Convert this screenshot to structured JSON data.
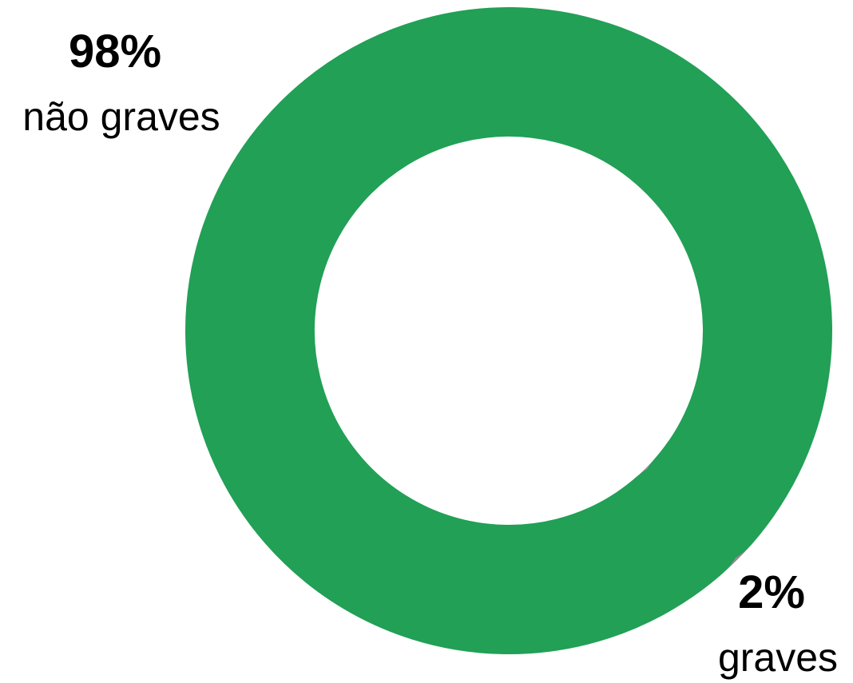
{
  "chart_data": {
    "type": "pie",
    "variant": "donut",
    "title": "",
    "slices": [
      {
        "label": "não graves",
        "value": 98,
        "value_label": "98%",
        "color": "#21a056"
      },
      {
        "label": "graves",
        "value": 2,
        "value_label": "2%",
        "color": "#8f8f8f"
      }
    ],
    "legend": "none"
  }
}
